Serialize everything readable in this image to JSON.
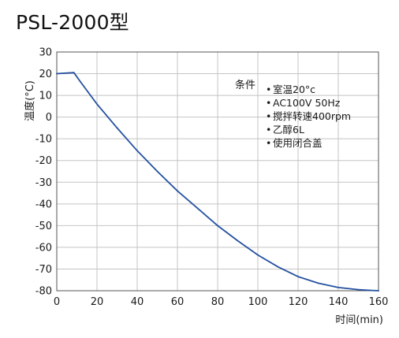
{
  "title": "PSL-2000型",
  "conditions": {
    "header": "条件",
    "bullet": "•",
    "items": [
      "室温20°c",
      "AC100V 50Hz",
      "搅拌转速400rpm",
      "乙醇6L",
      "使用闭合盖"
    ]
  },
  "chart_data": {
    "type": "line",
    "title": "PSL-2000型",
    "xlabel": "时间(min)",
    "ylabel": "温度(°C)",
    "xlim": [
      0,
      160
    ],
    "ylim": [
      -80,
      30
    ],
    "xticks": [
      0,
      20,
      40,
      60,
      80,
      100,
      120,
      140,
      160
    ],
    "yticks": [
      30,
      20,
      10,
      0,
      -10,
      -20,
      -30,
      -40,
      -50,
      -60,
      -70,
      -80
    ],
    "grid": true,
    "line_color": "#2451a0",
    "series": [
      {
        "x": [
          0,
          8.5,
          12,
          20,
          30,
          40,
          50,
          60,
          70,
          80,
          90,
          100,
          110,
          120,
          130,
          140,
          150,
          155,
          160
        ],
        "y": [
          20,
          20.5,
          16,
          6,
          -5,
          -15.5,
          -25,
          -34,
          -42,
          -50,
          -57,
          -63.5,
          -69,
          -73.5,
          -76.5,
          -78.5,
          -79.5,
          -79.8,
          -80
        ]
      }
    ]
  }
}
